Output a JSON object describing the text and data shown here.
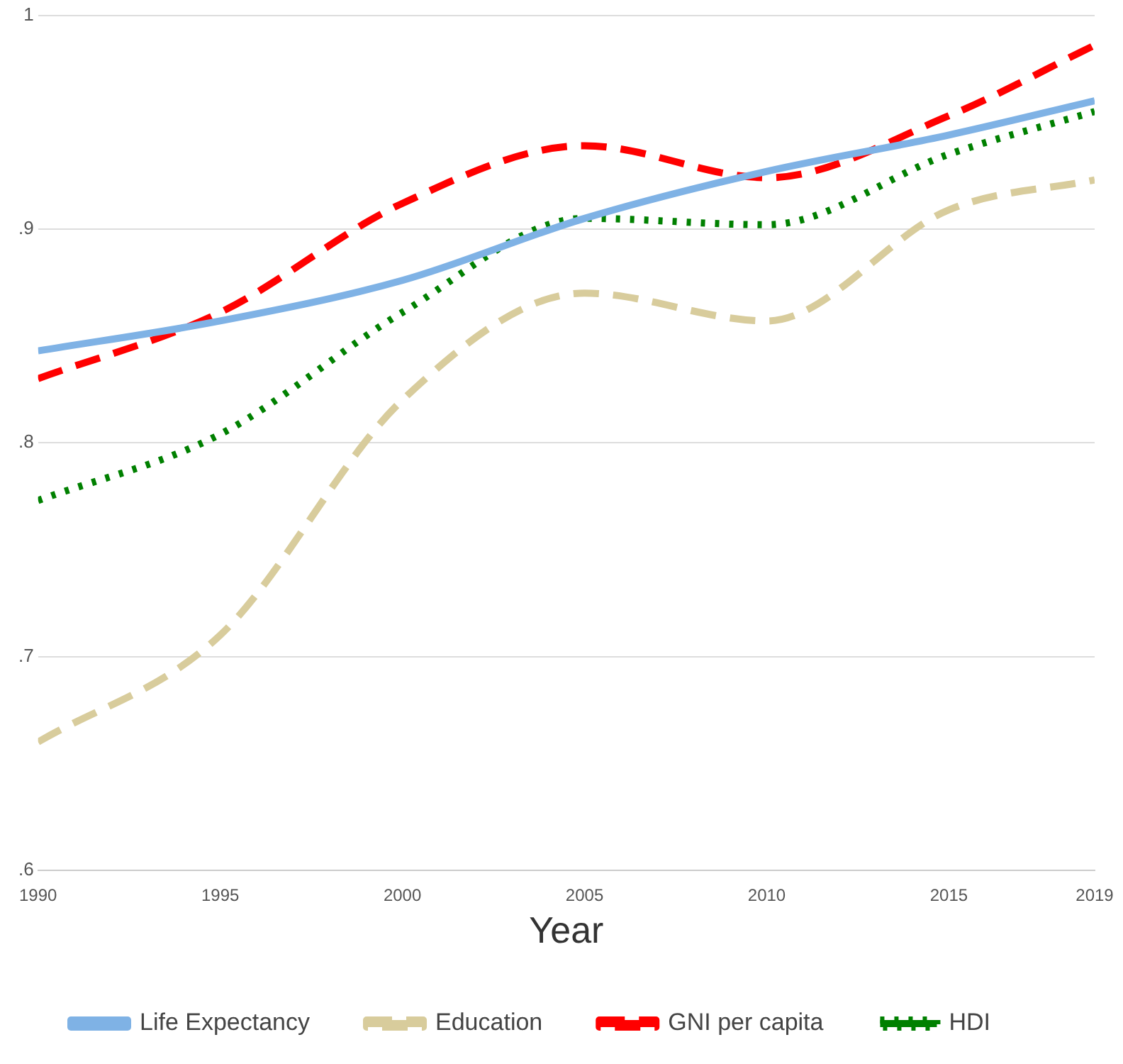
{
  "chart_data": {
    "type": "line",
    "xlabel": "Year",
    "x": [
      1990,
      1995,
      2000,
      2005,
      2010,
      2015,
      2019
    ],
    "series": [
      {
        "name": "Life Expectancy",
        "color": "#7fb2e5",
        "line_style": "solid",
        "values": [
          0.843,
          0.857,
          0.876,
          0.905,
          0.927,
          0.944,
          0.96
        ]
      },
      {
        "name": "Education",
        "color": "#d8cc9c",
        "line_style": "dashed",
        "values": [
          0.66,
          0.71,
          0.82,
          0.87,
          0.857,
          0.909,
          0.923
        ]
      },
      {
        "name": "GNI per capita",
        "color": "#ff0000",
        "line_style": "dashed",
        "values": [
          0.83,
          0.861,
          0.912,
          0.939,
          0.924,
          0.953,
          0.986
        ]
      },
      {
        "name": "HDI",
        "color": "#008000",
        "line_style": "dotted",
        "values": [
          0.773,
          0.804,
          0.861,
          0.905,
          0.902,
          0.935,
          0.955
        ]
      }
    ],
    "xlim": [
      1990,
      2019
    ],
    "xticks": [
      1990,
      1995,
      2000,
      2005,
      2010,
      2015,
      2019
    ],
    "ylim": [
      0.6,
      1
    ],
    "yticks": [
      {
        "value": 0.6,
        "label": ".6"
      },
      {
        "value": 0.7,
        "label": ".7"
      },
      {
        "value": 0.8,
        "label": ".8"
      },
      {
        "value": 0.9,
        "label": ".9"
      },
      1
    ],
    "grid": "y",
    "legend": "bottom",
    "marker": "none"
  }
}
